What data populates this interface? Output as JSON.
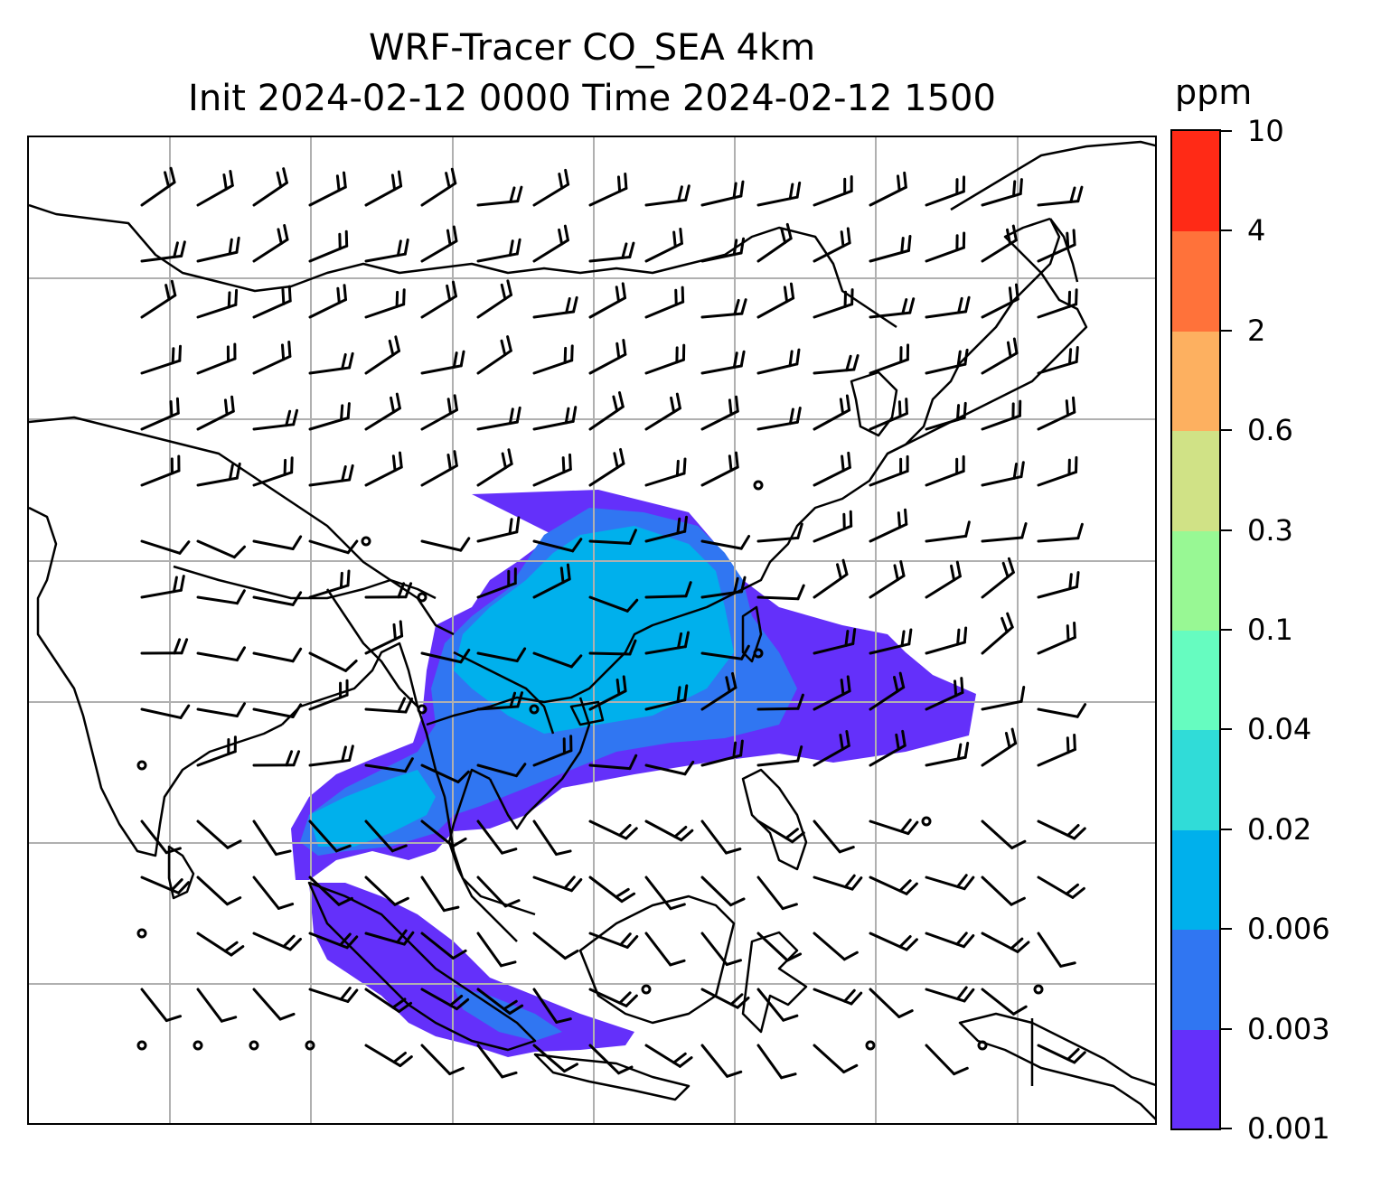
{
  "title": {
    "line1": "WRF-Tracer CO_SEA 4km",
    "line2": "Init 2024-02-12 0000 Time 2024-02-12 1500"
  },
  "colorbar": {
    "unit": "ppm",
    "levels": [
      "0.001",
      "0.003",
      "0.006",
      "0.02",
      "0.04",
      "0.1",
      "0.3",
      "0.6",
      "2",
      "4",
      "10"
    ],
    "colors": [
      "#6430fa",
      "#3076f2",
      "#00b0ec",
      "#30dcd8",
      "#66fcc0",
      "#98f894",
      "#d0e286",
      "#fdb060",
      "#ff723a",
      "#ff2a16"
    ]
  },
  "map": {
    "plume_colors": {
      "low": "#6430fa",
      "mid": "#3076f2",
      "high": "#00b0ec",
      "peak": "#30dcd8"
    },
    "coastline_color": "#000000",
    "gridline_color": "#b0b0b0",
    "wind_barbs": "black"
  }
}
